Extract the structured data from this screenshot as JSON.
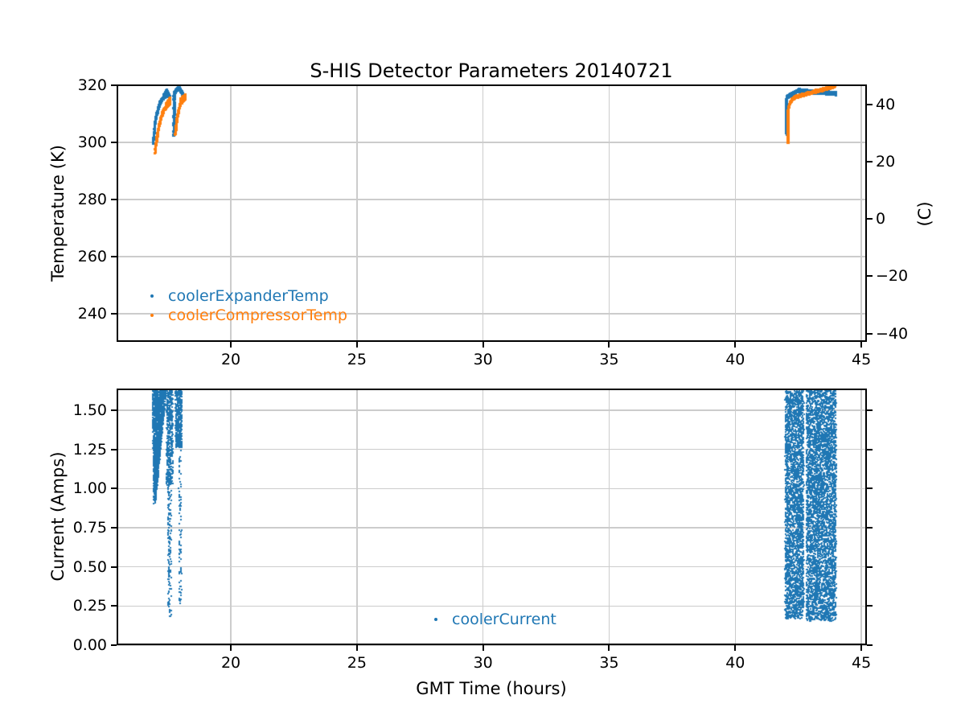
{
  "figure_title": "S-HIS Detector Parameters 20140721",
  "colors": {
    "blue": "#1f77b4",
    "orange": "#ff7f0e",
    "grid": "#cccccc",
    "spine": "#000000",
    "text": "#000000",
    "background": "#ffffff"
  },
  "chart_data": [
    {
      "type": "scatter",
      "title": "S-HIS Detector Parameters 20140721",
      "ylabel_left": "Temperature (K)",
      "ylabel_right": "(C)",
      "xlim": [
        15.47,
        45.22
      ],
      "ylim": [
        230.2,
        320.3
      ],
      "grid": true,
      "xtick_values": [
        20,
        25,
        30,
        35,
        40,
        45
      ],
      "xtick_labels": [
        "20",
        "25",
        "30",
        "35",
        "40",
        "45"
      ],
      "ytick_values": [
        240,
        260,
        280,
        300,
        320
      ],
      "ytick_labels": [
        "240",
        "260",
        "280",
        "300",
        "320"
      ],
      "right_tick_values_C": [
        -40,
        -20,
        0,
        20,
        40
      ],
      "right_tick_labels": [
        "−40",
        "−20",
        "0",
        "20",
        "40"
      ],
      "celsius_offset": 273.15,
      "legend": [
        {
          "label": "coolerExpanderTemp",
          "color": "#1f77b4"
        },
        {
          "label": "coolerCompressorTemp",
          "color": "#ff7f0e"
        }
      ],
      "legend_position": "lower left",
      "series": [
        {
          "name": "coolerExpanderTemp",
          "color": "#1f77b4",
          "size": 3,
          "segments": [
            {
              "type": "exp",
              "x0": 16.92,
              "x1": 17.5,
              "y0": 299.8,
              "y1": 316.5,
              "tau": 0.17,
              "n": 260,
              "jx": 0.015,
              "jy": 0.35
            },
            {
              "type": "line",
              "x0": 17.32,
              "x1": 17.46,
              "y0": 315.6,
              "y1": 318.0,
              "n": 90,
              "jx": 0.012,
              "jy": 0.45
            },
            {
              "type": "line",
              "x0": 17.46,
              "x1": 17.58,
              "y0": 318.0,
              "y1": 315.8,
              "n": 70,
              "jx": 0.012,
              "jy": 0.45
            },
            {
              "type": "vline",
              "x": 17.75,
              "y0": 302.5,
              "y1": 317.5,
              "n": 170,
              "jx": 0.02,
              "jy": 0.25
            },
            {
              "type": "line",
              "x0": 17.76,
              "x1": 17.94,
              "y0": 317.4,
              "y1": 319.3,
              "n": 90,
              "jx": 0.012,
              "jy": 0.4
            },
            {
              "type": "line",
              "x0": 17.94,
              "x1": 18.1,
              "y0": 319.1,
              "y1": 316.9,
              "n": 80,
              "jx": 0.012,
              "jy": 0.4
            },
            {
              "type": "vline",
              "x": 42.04,
              "y0": 303.0,
              "y1": 315.8,
              "n": 200,
              "jx": 0.02,
              "jy": 0.25
            },
            {
              "type": "line",
              "x0": 42.04,
              "x1": 42.55,
              "y0": 315.8,
              "y1": 318.3,
              "n": 150,
              "jx": 0.012,
              "jy": 0.5
            },
            {
              "type": "line",
              "x0": 42.55,
              "x1": 44.0,
              "y0": 318.1,
              "y1": 317.1,
              "n": 380,
              "jx": 0.012,
              "jy": 0.55
            }
          ]
        },
        {
          "name": "coolerCompressorTemp",
          "color": "#ff7f0e",
          "size": 3,
          "segments": [
            {
              "type": "exp",
              "x0": 17.0,
              "x1": 17.6,
              "y0": 296.3,
              "y1": 313.8,
              "tau": 0.22,
              "n": 280,
              "jx": 0.015,
              "jy": 0.4
            },
            {
              "type": "line",
              "x0": 17.44,
              "x1": 17.6,
              "y0": 313.2,
              "y1": 315.3,
              "n": 70,
              "jx": 0.012,
              "jy": 0.5
            },
            {
              "type": "exp",
              "x0": 17.8,
              "x1": 18.2,
              "y0": 302.5,
              "y1": 315.5,
              "tau": 0.13,
              "n": 220,
              "jx": 0.012,
              "jy": 0.4
            },
            {
              "type": "line",
              "x0": 18.0,
              "x1": 18.2,
              "y0": 314.6,
              "y1": 316.4,
              "n": 80,
              "jx": 0.012,
              "jy": 0.5
            },
            {
              "type": "vline",
              "x": 42.1,
              "y0": 299.9,
              "y1": 311.5,
              "n": 200,
              "jx": 0.025,
              "jy": 0.25
            },
            {
              "type": "exp",
              "x0": 42.1,
              "x1": 42.52,
              "y0": 311.5,
              "y1": 316.2,
              "tau": 0.12,
              "n": 160,
              "jx": 0.012,
              "jy": 0.4
            },
            {
              "type": "line",
              "x0": 42.52,
              "x1": 43.97,
              "y0": 316.2,
              "y1": 319.8,
              "n": 420,
              "jx": 0.012,
              "jy": 0.45
            }
          ]
        }
      ]
    },
    {
      "type": "scatter",
      "xlabel": "GMT Time (hours)",
      "ylabel": "Current (Amps)",
      "xlim": [
        15.47,
        45.22
      ],
      "ylim": [
        0.0,
        1.638
      ],
      "grid": true,
      "xtick_values": [
        20,
        25,
        30,
        35,
        40,
        45
      ],
      "xtick_labels": [
        "20",
        "25",
        "30",
        "35",
        "40",
        "45"
      ],
      "ytick_values": [
        0.0,
        0.25,
        0.5,
        0.75,
        1.0,
        1.25,
        1.5
      ],
      "ytick_labels": [
        "0.00",
        "0.25",
        "0.50",
        "0.75",
        "1.00",
        "1.25",
        "1.50"
      ],
      "legend": [
        {
          "label": "coolerCurrent",
          "color": "#1f77b4"
        }
      ],
      "legend_position": "lower center",
      "series": [
        {
          "name": "coolerCurrent",
          "color": "#1f77b4",
          "size": 2,
          "segments": [
            {
              "type": "wedge",
              "tipX": 16.95,
              "tipY": 0.9,
              "topY": 1.63,
              "leftTop": 16.88,
              "rightTop": 17.45,
              "n": 1500,
              "pow": 0.65
            },
            {
              "type": "band",
              "x0": 17.45,
              "x1": 17.7,
              "y0": 1.02,
              "y1": 1.63,
              "n": 450
            },
            {
              "type": "band",
              "x0": 17.5,
              "x1": 17.64,
              "y0": 0.18,
              "y1": 1.02,
              "n": 140
            },
            {
              "type": "band",
              "x0": 17.8,
              "x1": 18.06,
              "y0": 1.26,
              "y1": 1.63,
              "n": 420
            },
            {
              "type": "band",
              "x0": 17.94,
              "x1": 18.04,
              "y0": 0.22,
              "y1": 1.26,
              "n": 85
            },
            {
              "type": "band",
              "x0": 41.98,
              "x1": 42.72,
              "y0": 0.17,
              "y1": 1.625,
              "n": 2800
            },
            {
              "type": "band",
              "x0": 42.82,
              "x1": 44.0,
              "y0": 0.155,
              "y1": 1.63,
              "n": 4200
            }
          ]
        }
      ]
    }
  ]
}
